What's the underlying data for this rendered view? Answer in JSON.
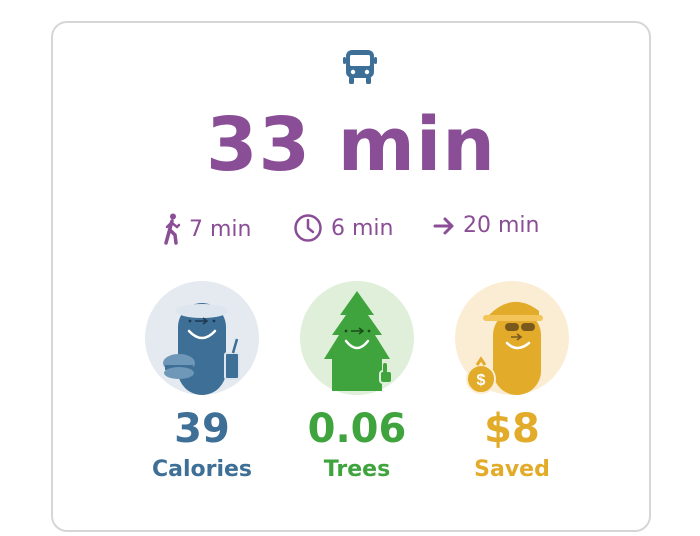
{
  "summary": {
    "mode_icon": "bus-icon",
    "total_time": "33 min"
  },
  "legs": [
    {
      "icon": "walk-icon",
      "label": "7 min"
    },
    {
      "icon": "clock-icon",
      "label": "6 min"
    },
    {
      "icon": "arrow-right-icon",
      "label": "20 min"
    }
  ],
  "stats": [
    {
      "icon": "calories-character-icon",
      "value": "39",
      "label": "Calories",
      "color": "#3e6f96"
    },
    {
      "icon": "tree-character-icon",
      "value": "0.06",
      "label": "Trees",
      "color": "#3fa43d"
    },
    {
      "icon": "money-character-icon",
      "value": "$8",
      "label": "Saved",
      "color": "#e3ab2a"
    }
  ],
  "colors": {
    "accent_purple": "#8a4e96",
    "icon_blue": "#3e6f96",
    "border": "#d6d6d6"
  }
}
